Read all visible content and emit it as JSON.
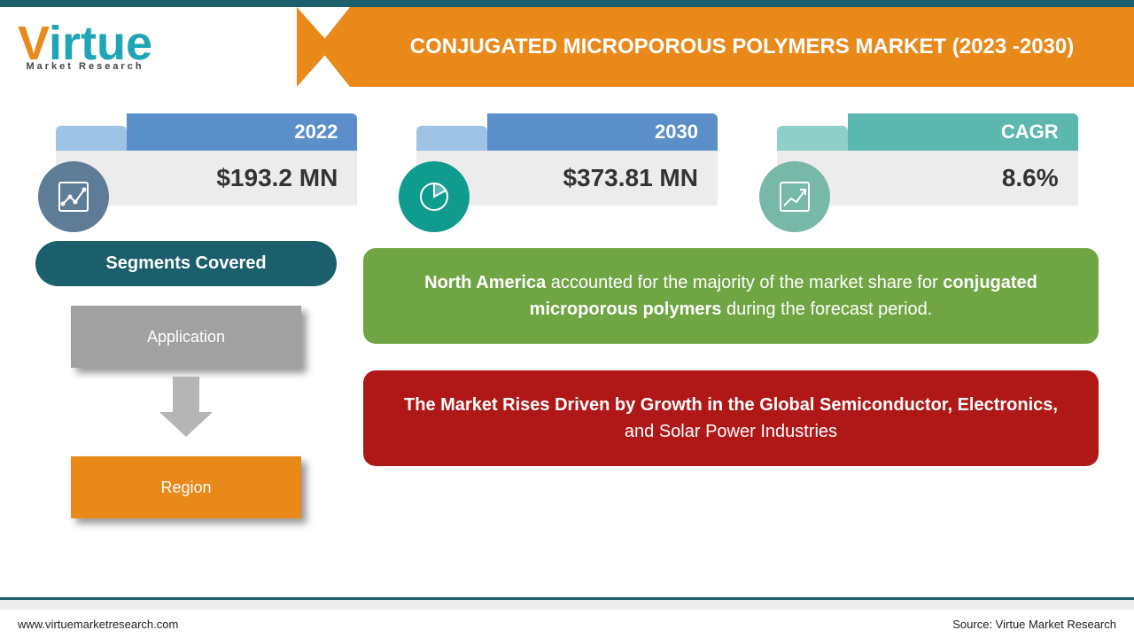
{
  "header": {
    "logo_main": "Virtue",
    "logo_sub": "Market Research",
    "title": "CONJUGATED MICROPOROUS POLYMERS MARKET  (2023 -2030)"
  },
  "colors": {
    "brand_orange": "#e8891a",
    "brand_teal": "#1fa5b8",
    "dark_teal": "#1a5f6b",
    "tab_blue_light": "#9fc3e5",
    "tab_blue": "#5a8fca",
    "tab_teal_light": "#8fcfca",
    "tab_teal": "#5cb8af",
    "teal_icon_bg": "#0f9b8e",
    "blue_icon_bg": "#5f7c96",
    "mint_icon_bg": "#78b8a8",
    "gray_box": "#a1a1a1",
    "orange_box": "#e8891a",
    "green_insight": "#70a544",
    "red_insight": "#b01818",
    "value_bg": "#ececec",
    "arrow_gray": "#b5b5b5"
  },
  "metrics": [
    {
      "tab_label": "2022",
      "value": "$193.2 MN",
      "tab_small_color": "#9fc3e5",
      "tab_large_color": "#5a8fca",
      "icon_bg": "#5f7c96",
      "icon": "chart-line"
    },
    {
      "tab_label": "2030",
      "value": "$373.81 MN",
      "tab_small_color": "#9fc3e5",
      "tab_large_color": "#5a8fca",
      "icon_bg": "#0f9b8e",
      "icon": "pie"
    },
    {
      "tab_label": "CAGR",
      "value": "8.6%",
      "tab_small_color": "#8fcfca",
      "tab_large_color": "#5cb8af",
      "icon_bg": "#78b8a8",
      "icon": "growth"
    }
  ],
  "segments": {
    "heading": "Segments Covered",
    "items": [
      {
        "label": "Application",
        "bg": "#a1a1a1"
      },
      {
        "label": "Region",
        "bg": "#e8891a"
      }
    ]
  },
  "insights": [
    {
      "bg": "#70a544",
      "html": "<b>North America</b> accounted for the majority of the market share for <b>conjugated microporous polymers</b> during the forecast period."
    },
    {
      "bg": "#b01818",
      "html": "<b>The Market Rises Driven by Growth in the Global Semiconductor, Electronics,</b> and Solar Power Industries"
    }
  ],
  "footer": {
    "left": "www.virtuemarketresearch.com",
    "right": "Source: Virtue Market Research"
  }
}
